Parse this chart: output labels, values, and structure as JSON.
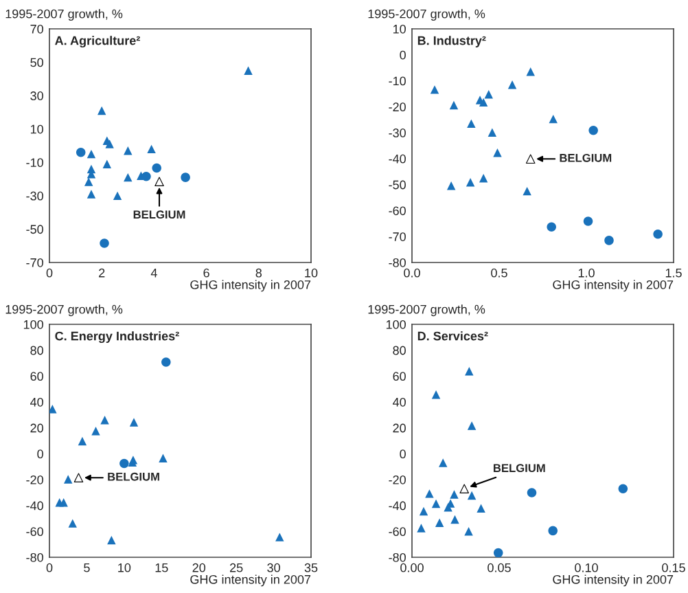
{
  "chart_data": [
    {
      "type": "scatter",
      "title": "A. Agriculture²",
      "ylabel": "1995-2007 growth, %",
      "xlabel": "GHG intensity in 2007",
      "xlim": [
        0,
        10
      ],
      "ylim": [
        -70,
        70
      ],
      "xticks": [
        0,
        2,
        4,
        6,
        8,
        10
      ],
      "yticks": [
        -70,
        -50,
        -30,
        -10,
        10,
        30,
        50,
        70
      ],
      "series": [
        {
          "color": "#1a72bb",
          "marker": "triangle",
          "x": [
            7.6,
            2.0,
            2.2,
            2.3,
            3.0,
            3.9,
            1.6,
            2.2,
            1.6,
            1.6,
            1.5,
            1.6,
            2.6,
            3.0,
            3.5
          ],
          "values": [
            45,
            21,
            3,
            1,
            -3,
            -2,
            -5,
            -11,
            -14,
            -17,
            -21.6,
            -29,
            -30,
            -19,
            -18
          ]
        },
        {
          "color": "#1a72bb",
          "marker": "circle",
          "x": [
            1.2,
            3.7,
            4.1,
            5.2,
            2.1
          ],
          "values": [
            -4,
            -18.4,
            -13.4,
            -19,
            -58.5
          ]
        },
        {
          "color": "#ffffff",
          "marker": "triangle",
          "x": [
            4.2
          ],
          "values": [
            -21.5
          ]
        }
      ],
      "annotations": [
        {
          "text": "BELGIUM",
          "x": 4.2,
          "y": -21.5
        }
      ]
    },
    {
      "type": "scatter",
      "title": "B. Industry²",
      "ylabel": "1995-2007 growth, %",
      "xlabel": "GHG intensity in 2007",
      "xlim": [
        0,
        1.5
      ],
      "ylim": [
        -80,
        10
      ],
      "xticks": [
        {
          "value": 0,
          "label": "0.0"
        },
        {
          "value": 0.5,
          "label": "0.5"
        },
        {
          "value": 1.0,
          "label": "1.0"
        },
        {
          "value": 1.5,
          "label": "1.5"
        }
      ],
      "yticks": [
        -80,
        -70,
        -60,
        -50,
        -40,
        -30,
        -20,
        -10,
        0,
        10
      ],
      "series": [
        {
          "color": "#1a72bb",
          "marker": "triangle",
          "x": [
            0.13,
            0.24,
            0.39,
            0.41,
            0.44,
            0.575,
            0.68,
            0.34,
            0.46,
            0.81,
            0.49,
            0.225,
            0.335,
            0.41,
            0.66
          ],
          "values": [
            -13.4,
            -19.4,
            -17.4,
            -18.3,
            -15.2,
            -11.5,
            -6.5,
            -26.5,
            -29.9,
            -24.7,
            -37.7,
            -50.4,
            -49.1,
            -47.5,
            -52.5
          ]
        },
        {
          "color": "#1a72bb",
          "marker": "circle",
          "x": [
            1.04,
            0.8,
            1.01,
            1.13,
            1.41
          ],
          "values": [
            -29.1,
            -66.3,
            -64.1,
            -71.5,
            -69.1
          ]
        },
        {
          "color": "#ffffff",
          "marker": "triangle",
          "x": [
            0.68
          ],
          "values": [
            -40.1
          ]
        }
      ],
      "annotations": [
        {
          "text": "BELGIUM",
          "x": 0.68,
          "y": -40.1
        }
      ]
    },
    {
      "type": "scatter",
      "title": "C. Energy Industries²",
      "ylabel": "1995-2007 growth, %",
      "xlabel": "GHG intensity in 2007",
      "xlim": [
        0,
        35
      ],
      "ylim": [
        -80,
        100
      ],
      "xticks": [
        0,
        5,
        10,
        15,
        20,
        25,
        30,
        35
      ],
      "yticks": [
        -80,
        -60,
        -40,
        -20,
        0,
        20,
        40,
        60,
        80,
        100
      ],
      "series": [
        {
          "color": "#1a72bb",
          "marker": "triangle",
          "x": [
            0.4,
            7.4,
            6.2,
            4.4,
            11.3,
            15.2,
            11.2,
            11.1,
            2.5,
            1.35,
            1.9,
            3.1,
            8.3,
            30.8
          ],
          "values": [
            34.6,
            26.1,
            17.6,
            9.7,
            24.3,
            -3.4,
            -4.8,
            -6.6,
            -19.7,
            -37.7,
            -37.7,
            -53.8,
            -66.7,
            -64.4
          ]
        },
        {
          "color": "#1a72bb",
          "marker": "circle",
          "x": [
            15.6,
            10.0
          ],
          "values": [
            70.8,
            -7.5
          ]
        },
        {
          "color": "#ffffff",
          "marker": "triangle",
          "x": [
            3.9
          ],
          "values": [
            -18.5
          ]
        }
      ],
      "annotations": [
        {
          "text": "BELGIUM",
          "x": 3.9,
          "y": -18.5
        }
      ]
    },
    {
      "type": "scatter",
      "title": "D. Services²",
      "ylabel": "1995-2007 growth, %",
      "xlabel": "GHG intensity in 2007",
      "xlim": [
        0,
        0.15
      ],
      "ylim": [
        -80,
        100
      ],
      "xticks": [
        {
          "value": 0,
          "label": "0.00"
        },
        {
          "value": 0.05,
          "label": "0.05"
        },
        {
          "value": 0.1,
          "label": "0.10"
        },
        {
          "value": 0.15,
          "label": "0.15"
        }
      ],
      "yticks": [
        -80,
        -60,
        -40,
        -20,
        0,
        20,
        40,
        60,
        80,
        100
      ],
      "series": [
        {
          "color": "#1a72bb",
          "marker": "triangle",
          "x": [
            0.0328,
            0.0138,
            0.0343,
            0.0178,
            0.01,
            0.0242,
            0.0343,
            0.0138,
            0.0221,
            0.0207,
            0.0396,
            0.0067,
            0.0246,
            0.0158,
            0.0053,
            0.0325
          ],
          "values": [
            63.8,
            45.7,
            21.7,
            -7.0,
            -30.8,
            -31.4,
            -32.2,
            -38.6,
            -38.4,
            -41.4,
            -42.2,
            -44.4,
            -50.8,
            -53.3,
            -57.4,
            -60.0
          ]
        },
        {
          "color": "#1a72bb",
          "marker": "circle",
          "x": [
            0.0687,
            0.121,
            0.0808,
            0.0495
          ],
          "values": [
            -30.1,
            -27.0,
            -59.5,
            -76.6
          ]
        },
        {
          "color": "#ffffff",
          "marker": "triangle",
          "x": [
            0.03
          ],
          "values": [
            -27.0
          ]
        }
      ],
      "annotations": [
        {
          "text": "BELGIUM",
          "x": 0.03,
          "y": -27.0
        }
      ]
    }
  ]
}
